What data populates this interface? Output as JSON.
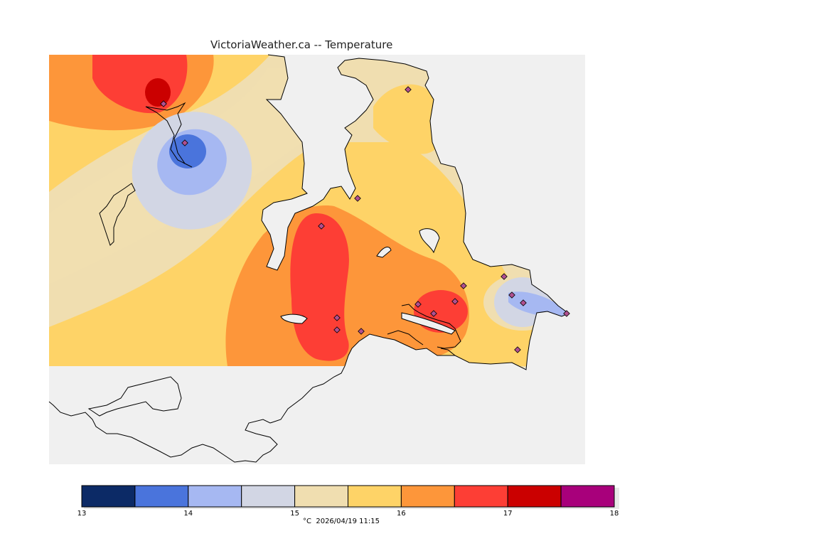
{
  "title": "VictoriaWeather.ca -- Temperature",
  "legend": {
    "unit": "°C",
    "timestamp": "2026/04/19 11:15",
    "caption": "°C  2026/04/19 11:15",
    "bins": [
      {
        "from": 13.0,
        "to": 13.5,
        "color": "#0c2a66"
      },
      {
        "from": 13.5,
        "to": 14.0,
        "color": "#4a74dc"
      },
      {
        "from": 14.0,
        "to": 14.5,
        "color": "#a6b8f2"
      },
      {
        "from": 14.5,
        "to": 15.0,
        "color": "#d2d6e4"
      },
      {
        "from": 15.0,
        "to": 15.5,
        "color": "#f0deb0"
      },
      {
        "from": 15.5,
        "to": 16.0,
        "color": "#fed367"
      },
      {
        "from": 16.0,
        "to": 16.5,
        "color": "#fd963a"
      },
      {
        "from": 16.5,
        "to": 17.0,
        "color": "#fd3e35"
      },
      {
        "from": 17.0,
        "to": 17.5,
        "color": "#cb0000"
      },
      {
        "from": 17.5,
        "to": 18.0,
        "color": "#a8007b"
      }
    ],
    "tick_labels": [
      "13",
      "14",
      "15",
      "16",
      "17",
      "18"
    ]
  },
  "colors": {
    "background_land": "#f0f0f0",
    "coastline": "#000000",
    "station_marker": "#b05090"
  }
}
